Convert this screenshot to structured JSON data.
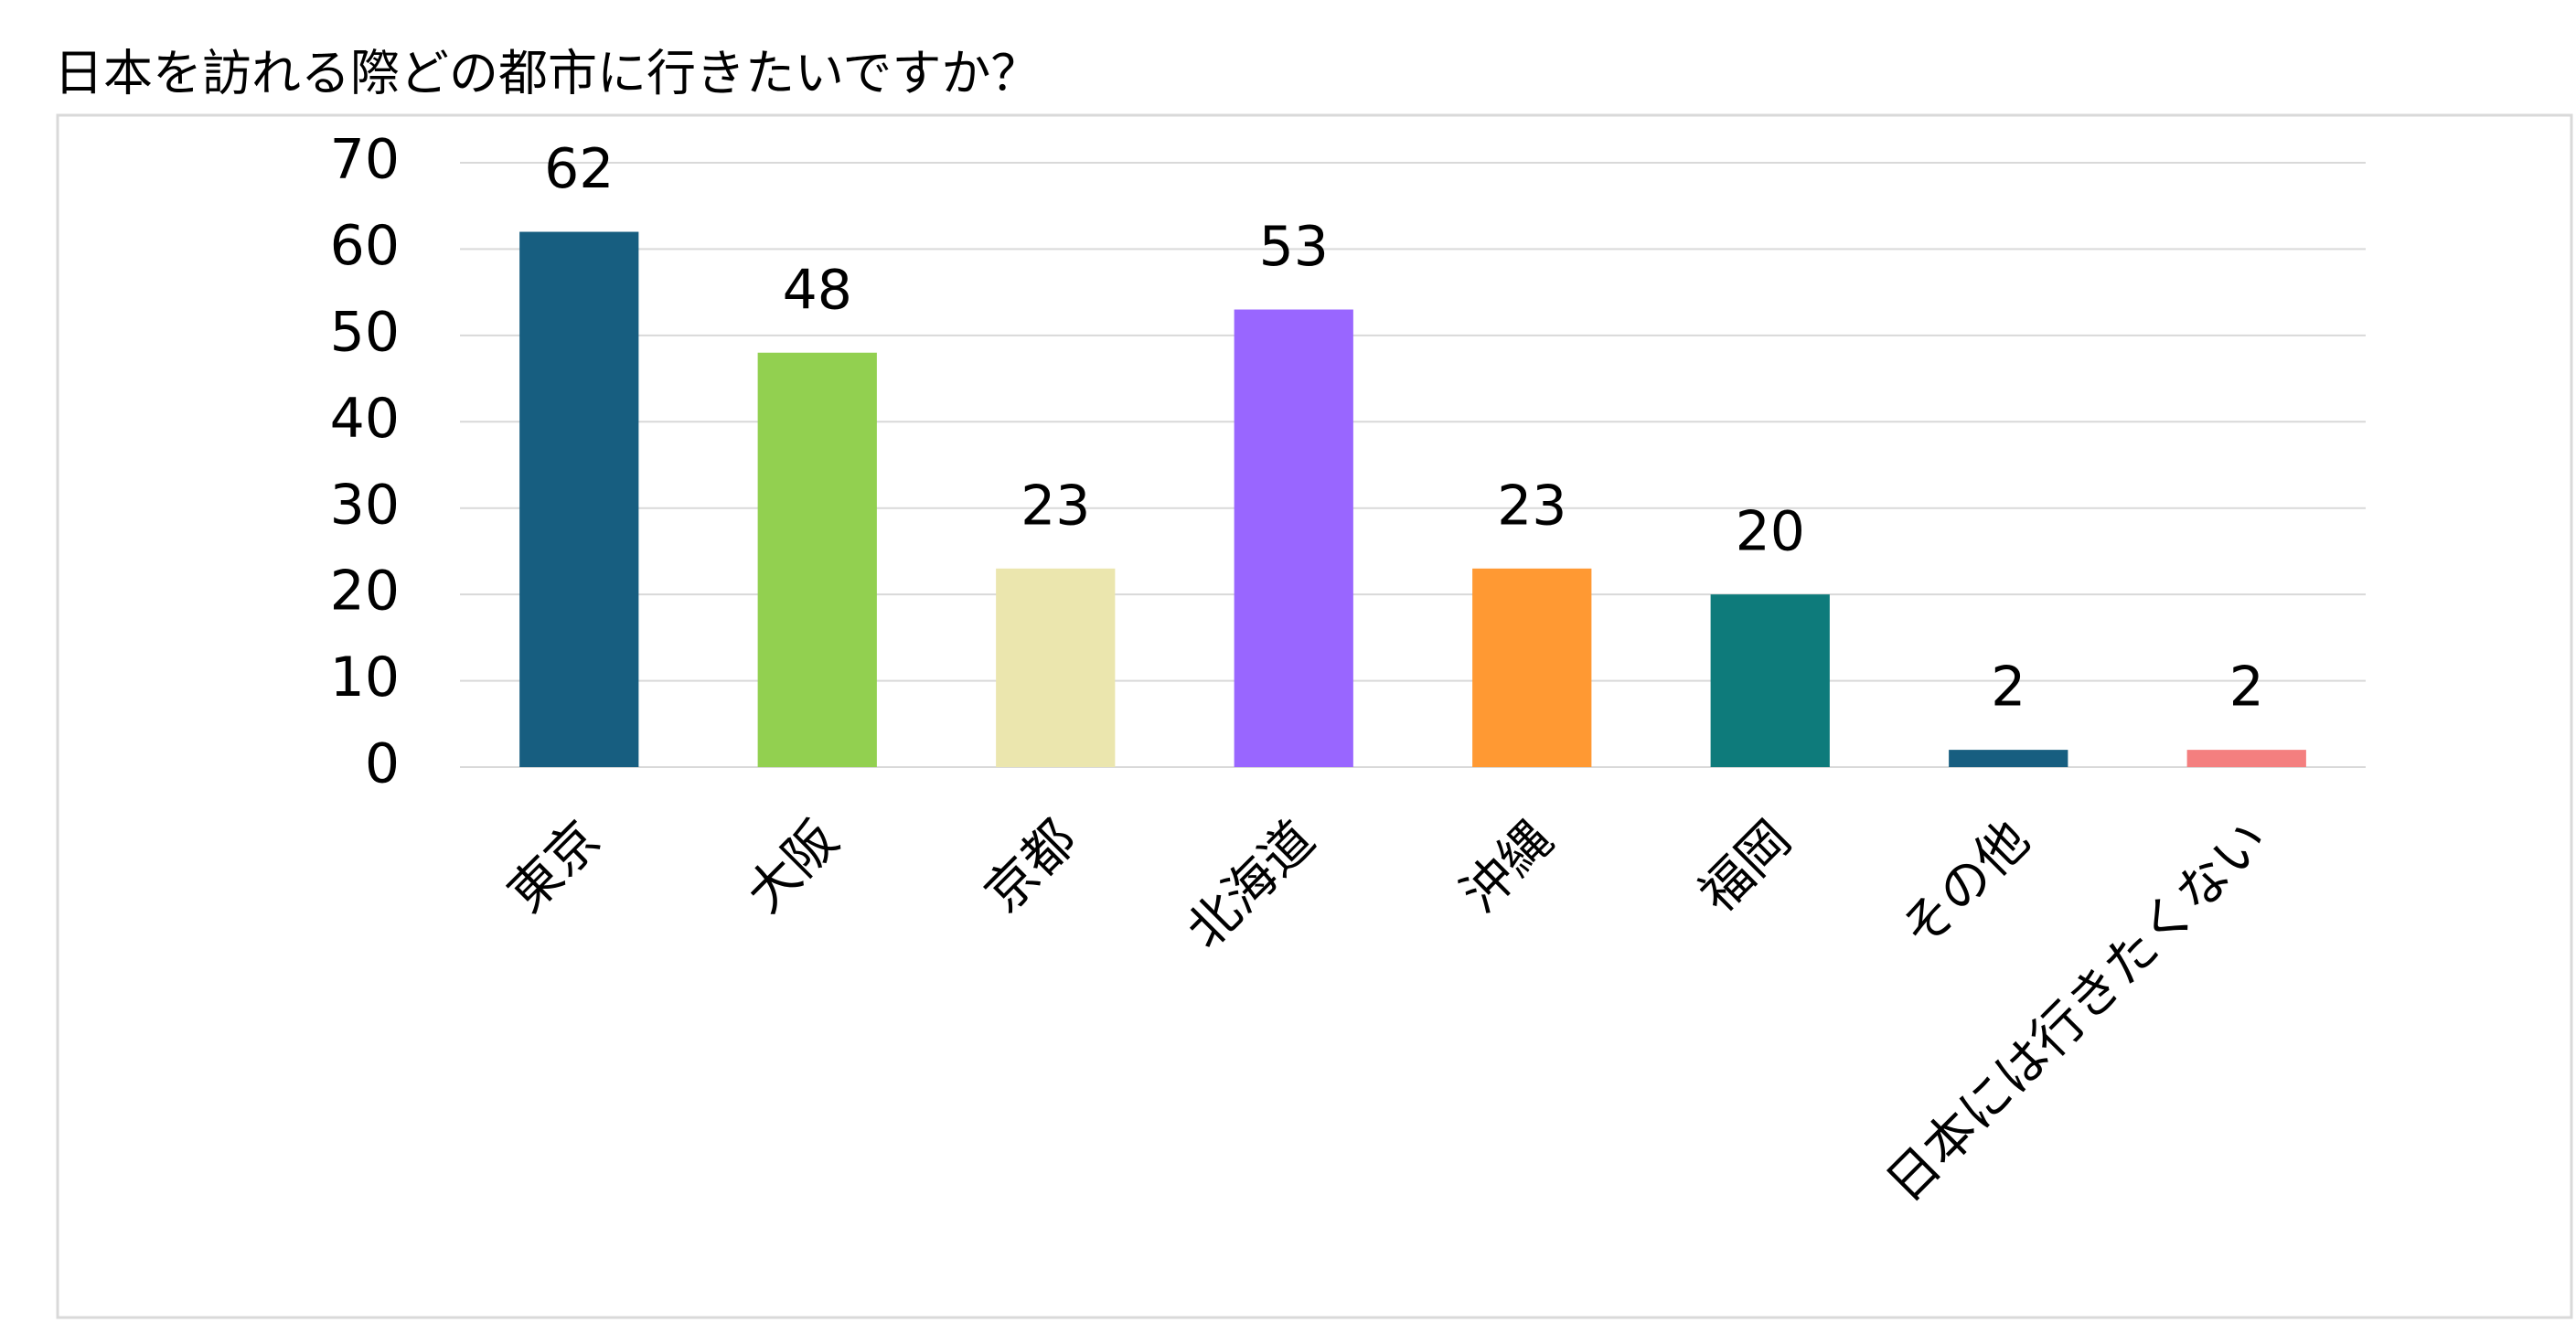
{
  "chart_data": {
    "type": "bar",
    "title": "日本を訪れる際どの都市に行きたいですか？",
    "categories": [
      "東京",
      "大阪",
      "京都",
      "北海道",
      "沖縄",
      "福岡",
      "その他",
      "日本には行きたくない"
    ],
    "values": [
      62,
      48,
      23,
      53,
      23,
      20,
      2,
      2
    ],
    "colors": [
      "#175e80",
      "#92d050",
      "#ebe6ae",
      "#9966ff",
      "#ff9933",
      "#0e7b7b",
      "#175e80",
      "#f47f7f"
    ],
    "ylim": [
      0,
      70
    ],
    "yticks": [
      0,
      10,
      20,
      30,
      40,
      50,
      60,
      70
    ],
    "grid": true,
    "data_labels": true
  }
}
